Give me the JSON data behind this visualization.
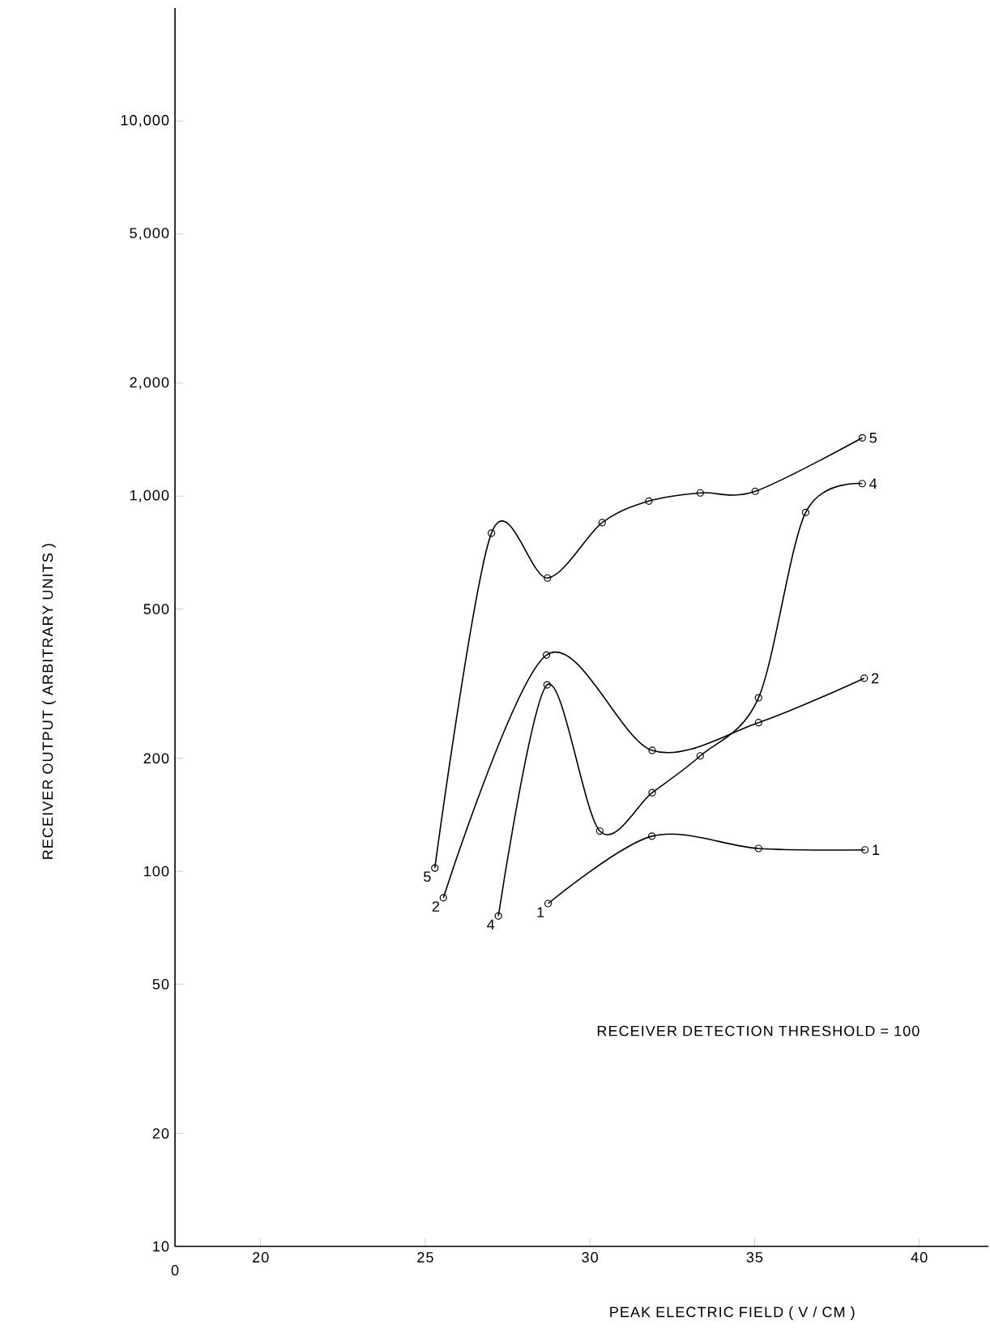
{
  "chart_data": {
    "type": "line",
    "xlabel": "PEAK ELECTRIC FIELD ( V / CM )",
    "ylabel": "RECEIVER OUTPUT ( ARBITRARY UNITS )",
    "log": "y",
    "marker": "circle",
    "line_style": "solid",
    "xlim": [
      17.4,
      42.1
    ],
    "xticks": [
      20,
      25,
      30,
      35,
      40
    ],
    "ylim": [
      10,
      20000
    ],
    "yticks": [
      10,
      20,
      50,
      {
        "value": 100,
        "label": "100"
      },
      {
        "value": 200,
        "label": "200"
      },
      {
        "value": 500,
        "label": "500"
      },
      {
        "value": 1000,
        "label": "1,000"
      },
      {
        "value": 2000,
        "label": "2,000"
      },
      {
        "value": 5000,
        "label": "5,000"
      },
      {
        "value": 10000,
        "label": "10,000"
      }
    ],
    "series": [
      {
        "name": "5",
        "color": "#000000",
        "x": [
          25.29,
          27.01,
          28.71,
          30.37,
          31.79,
          33.35,
          35.02,
          38.27
        ],
        "values": [
          102,
          797,
          605,
          850,
          970,
          1020,
          1030,
          1430
        ]
      },
      {
        "name": "4",
        "color": "#000000",
        "x": [
          27.22,
          28.7,
          30.3,
          31.89,
          33.35,
          35.12,
          36.55,
          38.27
        ],
        "values": [
          76,
          314,
          128,
          162,
          203,
          290,
          905,
          1080
        ]
      },
      {
        "name": "2",
        "color": "#000000",
        "x": [
          25.55,
          28.68,
          31.89,
          35.12,
          38.33
        ],
        "values": [
          85,
          377,
          210,
          249,
          327
        ]
      },
      {
        "name": "1",
        "color": "#000000",
        "x": [
          28.73,
          31.88,
          35.12,
          38.35
        ],
        "values": [
          82,
          124,
          115,
          114
        ]
      }
    ],
    "annotations": [
      "0",
      "RECEIVER DETECTION THRESHOLD = 100"
    ]
  }
}
